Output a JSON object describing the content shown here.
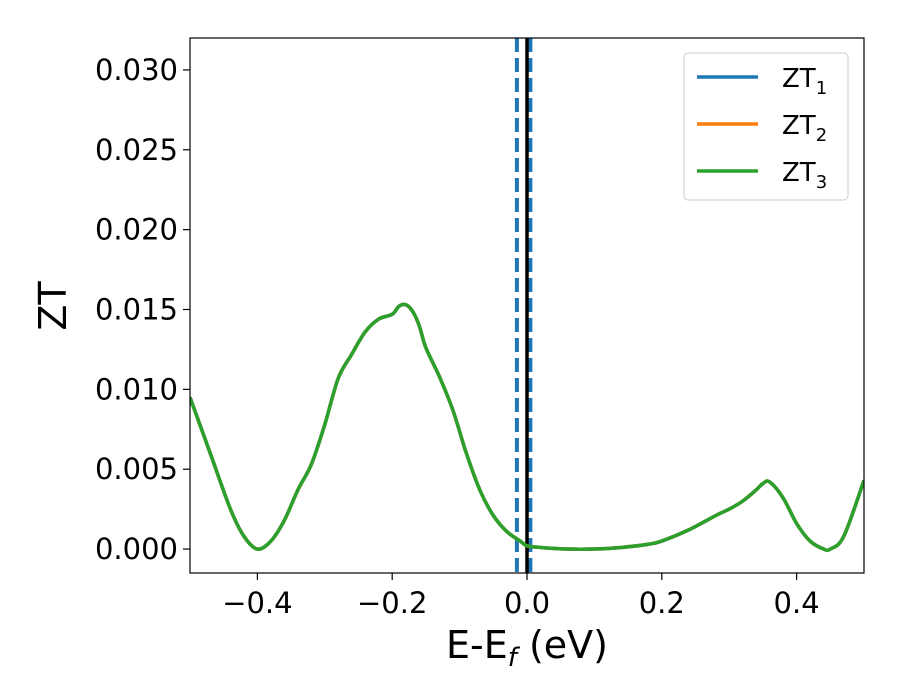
{
  "chart_data": {
    "type": "line",
    "xlabel": "E-E",
    "xlabel_subscript": "f",
    "xlabel_suffix": " (eV)",
    "ylabel": "ZT",
    "xlim": [
      -0.5,
      0.5
    ],
    "ylim": [
      -0.0015,
      0.032
    ],
    "x_ticks": [
      -0.4,
      -0.2,
      0.0,
      0.2,
      0.4
    ],
    "x_tick_labels": [
      "−0.4",
      "−0.2",
      "0.0",
      "0.2",
      "0.4"
    ],
    "y_ticks": [
      0.0,
      0.005,
      0.01,
      0.015,
      0.02,
      0.025,
      0.03
    ],
    "y_tick_labels": [
      "0.000",
      "0.005",
      "0.010",
      "0.015",
      "0.020",
      "0.025",
      "0.030"
    ],
    "grid": false,
    "legend_position": "top-right",
    "series": [
      {
        "name": "ZT",
        "subscript": "1",
        "color": "#1f77b4",
        "x": [
          -0.5,
          -0.47,
          -0.44,
          -0.42,
          -0.4,
          -0.38,
          -0.36,
          -0.34,
          -0.32,
          -0.3,
          -0.28,
          -0.26,
          -0.24,
          -0.22,
          -0.2,
          -0.19,
          -0.18,
          -0.17,
          -0.16,
          -0.15,
          -0.13,
          -0.11,
          -0.09,
          -0.07,
          -0.05,
          -0.03,
          -0.01,
          0.0,
          0.02,
          0.06,
          0.1,
          0.14,
          0.18,
          0.2,
          0.24,
          0.28,
          0.3,
          0.32,
          0.34,
          0.35,
          0.36,
          0.38,
          0.4,
          0.42,
          0.44,
          0.45,
          0.47,
          0.5
        ],
        "y": [
          0.0095,
          0.006,
          0.0025,
          0.0008,
          0.0,
          0.0005,
          0.0018,
          0.0037,
          0.0053,
          0.0078,
          0.0107,
          0.0122,
          0.0136,
          0.0144,
          0.0147,
          0.0152,
          0.0153,
          0.0149,
          0.014,
          0.0126,
          0.0108,
          0.0087,
          0.006,
          0.0037,
          0.0021,
          0.0011,
          0.0005,
          0.0002,
          0.0001,
          0.0,
          0.0,
          0.0001,
          0.0003,
          0.0005,
          0.0012,
          0.0021,
          0.0025,
          0.003,
          0.0037,
          0.0041,
          0.0042,
          0.0032,
          0.0016,
          0.0005,
          0.0,
          0.0,
          0.0008,
          0.0043
        ]
      },
      {
        "name": "ZT",
        "subscript": "2",
        "color": "#ff7f0e",
        "x": [
          -0.5,
          -0.47,
          -0.44,
          -0.42,
          -0.4,
          -0.38,
          -0.36,
          -0.34,
          -0.32,
          -0.3,
          -0.28,
          -0.26,
          -0.24,
          -0.22,
          -0.2,
          -0.19,
          -0.18,
          -0.17,
          -0.16,
          -0.15,
          -0.13,
          -0.11,
          -0.09,
          -0.07,
          -0.05,
          -0.03,
          -0.01,
          0.0,
          0.02,
          0.06,
          0.1,
          0.14,
          0.18,
          0.2,
          0.24,
          0.28,
          0.3,
          0.32,
          0.34,
          0.35,
          0.36,
          0.38,
          0.4,
          0.42,
          0.44,
          0.45,
          0.47,
          0.5
        ],
        "y": [
          0.0095,
          0.006,
          0.0025,
          0.0008,
          0.0,
          0.0005,
          0.0018,
          0.0037,
          0.0053,
          0.0078,
          0.0107,
          0.0122,
          0.0136,
          0.0144,
          0.0147,
          0.0152,
          0.0153,
          0.0149,
          0.014,
          0.0126,
          0.0108,
          0.0087,
          0.006,
          0.0037,
          0.0021,
          0.0011,
          0.0005,
          0.0002,
          0.0001,
          0.0,
          0.0,
          0.0001,
          0.0003,
          0.0005,
          0.0012,
          0.0021,
          0.0025,
          0.003,
          0.0037,
          0.0041,
          0.0042,
          0.0032,
          0.0016,
          0.0005,
          0.0,
          0.0,
          0.0008,
          0.0043
        ]
      },
      {
        "name": "ZT",
        "subscript": "3",
        "color": "#2ca02c",
        "x": [
          -0.5,
          -0.47,
          -0.44,
          -0.42,
          -0.4,
          -0.38,
          -0.36,
          -0.34,
          -0.32,
          -0.3,
          -0.28,
          -0.26,
          -0.24,
          -0.22,
          -0.2,
          -0.19,
          -0.18,
          -0.17,
          -0.16,
          -0.15,
          -0.13,
          -0.11,
          -0.09,
          -0.07,
          -0.05,
          -0.03,
          -0.01,
          0.0,
          0.02,
          0.06,
          0.1,
          0.14,
          0.18,
          0.2,
          0.24,
          0.28,
          0.3,
          0.32,
          0.34,
          0.35,
          0.36,
          0.38,
          0.4,
          0.42,
          0.44,
          0.45,
          0.47,
          0.5
        ],
        "y": [
          0.0095,
          0.006,
          0.0025,
          0.0008,
          0.0,
          0.0005,
          0.0018,
          0.0037,
          0.0053,
          0.0078,
          0.0107,
          0.0122,
          0.0136,
          0.0144,
          0.0147,
          0.0152,
          0.0153,
          0.0149,
          0.014,
          0.0126,
          0.0108,
          0.0087,
          0.006,
          0.0037,
          0.0021,
          0.0011,
          0.0005,
          0.0002,
          0.0001,
          0.0,
          0.0,
          0.0001,
          0.0003,
          0.0005,
          0.0012,
          0.0021,
          0.0025,
          0.003,
          0.0037,
          0.0041,
          0.0042,
          0.0032,
          0.0016,
          0.0005,
          0.0,
          0.0,
          0.0008,
          0.0043
        ]
      }
    ],
    "vertical_lines": [
      {
        "x": -0.015,
        "style": "dashed",
        "color": "#1f77b4"
      },
      {
        "x": 0.005,
        "style": "dashed",
        "color": "#1f77b4"
      },
      {
        "x": 0.0,
        "style": "solid",
        "color": "#000000"
      }
    ]
  }
}
